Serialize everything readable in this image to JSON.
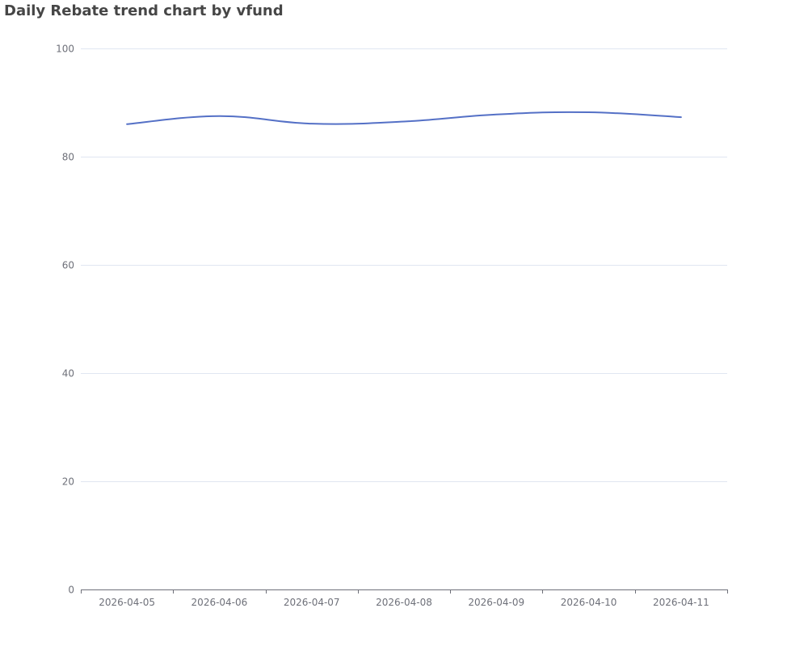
{
  "chart_data": {
    "type": "line",
    "title": "Daily Rebate trend chart by vfund",
    "xlabel": "",
    "ylabel": "",
    "categories": [
      "2026-04-05",
      "2026-04-06",
      "2026-04-07",
      "2026-04-08",
      "2026-04-09",
      "2026-04-10",
      "2026-04-11"
    ],
    "series": [
      {
        "values": [
          86.0,
          87.5,
          86.1,
          86.5,
          87.8,
          88.2,
          87.3
        ],
        "color": "#5470c6",
        "smooth": true
      }
    ],
    "ylim": [
      0,
      100
    ],
    "yticks": [
      0,
      20,
      40,
      60,
      80,
      100
    ],
    "grid": true,
    "legend": "none"
  }
}
